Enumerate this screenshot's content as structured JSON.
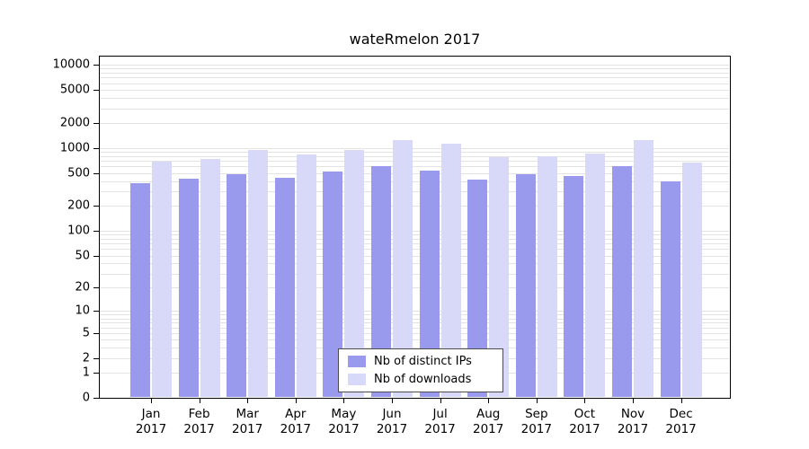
{
  "chart_data": {
    "type": "bar",
    "title": "wateRmelon 2017",
    "categories": [
      "Jan",
      "Feb",
      "Mar",
      "Apr",
      "May",
      "Jun",
      "Jul",
      "Aug",
      "Sep",
      "Oct",
      "Nov",
      "Dec"
    ],
    "year": "2017",
    "series": [
      {
        "name": "Nb of distinct IPs",
        "color": "#9999ee",
        "values": [
          375,
          425,
          485,
          440,
          520,
          605,
          535,
          415,
          485,
          460,
          605,
          395
        ]
      },
      {
        "name": "Nb of downloads",
        "color": "#d8d8f8",
        "values": [
          685,
          740,
          945,
          835,
          945,
          1240,
          1125,
          775,
          795,
          855,
          1240,
          670
        ]
      }
    ],
    "yscale": "log1p",
    "yticks": [
      0,
      1,
      2,
      5,
      10,
      20,
      50,
      100,
      200,
      500,
      1000,
      2000,
      5000,
      10000
    ],
    "ylim": [
      0,
      15000
    ],
    "grid": true,
    "legend_position": "bottom-center",
    "colors": {
      "grid": "#e3e3e3",
      "axis": "#000000",
      "background": "#ffffff"
    }
  }
}
